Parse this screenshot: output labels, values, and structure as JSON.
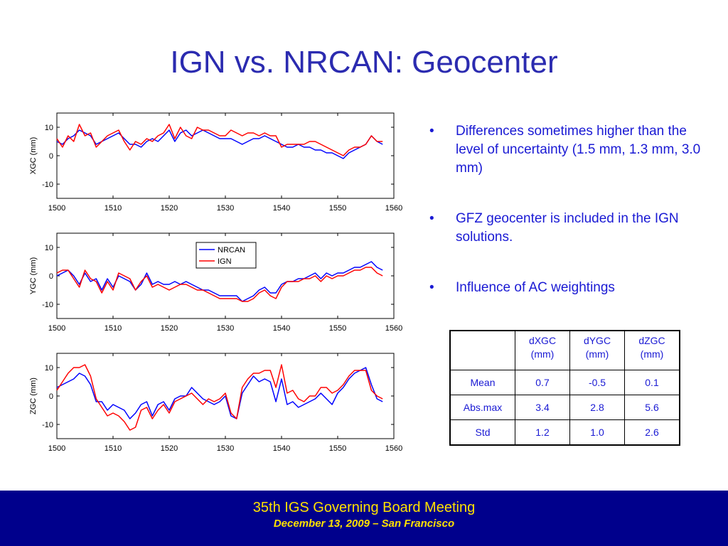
{
  "slide": {
    "title": "IGN vs. NRCAN: Geocenter"
  },
  "colors": {
    "title": "#2b2bb0",
    "bullet_text": "#1a1ad4",
    "nrcan": "#0000ff",
    "ign": "#ff0000",
    "footer_bg": "#00008c",
    "footer_text": "#ffe100"
  },
  "chart_data": [
    {
      "type": "line",
      "ylabel": "XGC (mm)",
      "xlim": [
        1500,
        1560
      ],
      "ylim": [
        -15,
        15
      ],
      "xticks": [
        1500,
        1510,
        1520,
        1530,
        1540,
        1550,
        1560
      ],
      "yticks": [
        -10,
        0,
        10
      ],
      "series": [
        {
          "name": "NRCAN",
          "color": "#0000ff",
          "x": [
            1500,
            1501,
            1502,
            1503,
            1504,
            1505,
            1506,
            1507,
            1508,
            1509,
            1510,
            1511,
            1512,
            1513,
            1514,
            1515,
            1516,
            1517,
            1518,
            1519,
            1520,
            1521,
            1522,
            1523,
            1524,
            1525,
            1526,
            1527,
            1528,
            1529,
            1530,
            1531,
            1532,
            1533,
            1534,
            1535,
            1536,
            1537,
            1538,
            1539,
            1540,
            1541,
            1542,
            1543,
            1544,
            1545,
            1546,
            1547,
            1548,
            1549,
            1550,
            1551,
            1552,
            1553,
            1554,
            1555,
            1556,
            1557,
            1558
          ],
          "y": [
            5,
            4,
            6,
            7,
            9,
            8,
            7,
            4,
            5,
            6,
            7,
            8,
            6,
            4,
            4,
            3,
            5,
            6,
            5,
            7,
            9,
            5,
            8,
            9,
            7,
            8,
            9,
            8,
            7,
            6,
            6,
            6,
            5,
            4,
            5,
            6,
            6,
            7,
            6,
            5,
            4,
            3,
            3,
            4,
            3,
            3,
            2,
            2,
            1,
            1,
            0,
            -1,
            1,
            2,
            3,
            4,
            7,
            5,
            4
          ]
        },
        {
          "name": "IGN",
          "color": "#ff0000",
          "x": [
            1500,
            1501,
            1502,
            1503,
            1504,
            1505,
            1506,
            1507,
            1508,
            1509,
            1510,
            1511,
            1512,
            1513,
            1514,
            1515,
            1516,
            1517,
            1518,
            1519,
            1520,
            1521,
            1522,
            1523,
            1524,
            1525,
            1526,
            1527,
            1528,
            1529,
            1530,
            1531,
            1532,
            1533,
            1534,
            1535,
            1536,
            1537,
            1538,
            1539,
            1540,
            1541,
            1542,
            1543,
            1544,
            1545,
            1546,
            1547,
            1548,
            1549,
            1550,
            1551,
            1552,
            1553,
            1554,
            1555,
            1556,
            1557,
            1558
          ],
          "y": [
            6,
            3,
            7,
            5,
            11,
            7,
            8,
            3,
            5,
            7,
            8,
            9,
            5,
            2,
            5,
            4,
            6,
            5,
            7,
            8,
            11,
            6,
            10,
            7,
            6,
            10,
            9,
            9,
            8,
            7,
            7,
            9,
            8,
            7,
            8,
            8,
            7,
            8,
            7,
            7,
            3,
            4,
            4,
            4,
            4,
            5,
            5,
            4,
            3,
            2,
            1,
            0,
            2,
            3,
            3,
            4,
            7,
            5,
            5
          ]
        }
      ]
    },
    {
      "type": "line",
      "ylabel": "YGC (mm)",
      "xlim": [
        1500,
        1560
      ],
      "ylim": [
        -15,
        15
      ],
      "xticks": [
        1500,
        1510,
        1520,
        1530,
        1540,
        1550,
        1560
      ],
      "yticks": [
        -10,
        0,
        10
      ],
      "legend": {
        "position": "top-center",
        "entries": [
          "NRCAN",
          "IGN"
        ]
      },
      "series": [
        {
          "name": "NRCAN",
          "color": "#0000ff",
          "x": [
            1500,
            1501,
            1502,
            1503,
            1504,
            1505,
            1506,
            1507,
            1508,
            1509,
            1510,
            1511,
            1512,
            1513,
            1514,
            1515,
            1516,
            1517,
            1518,
            1519,
            1520,
            1521,
            1522,
            1523,
            1524,
            1525,
            1526,
            1527,
            1528,
            1529,
            1530,
            1531,
            1532,
            1533,
            1534,
            1535,
            1536,
            1537,
            1538,
            1539,
            1540,
            1541,
            1542,
            1543,
            1544,
            1545,
            1546,
            1547,
            1548,
            1549,
            1550,
            1551,
            1552,
            1553,
            1554,
            1555,
            1556,
            1557,
            1558
          ],
          "y": [
            0,
            1,
            2,
            0,
            -3,
            1,
            -2,
            -1,
            -5,
            -1,
            -4,
            0,
            -1,
            -2,
            -5,
            -3,
            1,
            -3,
            -2,
            -3,
            -3,
            -2,
            -3,
            -2,
            -3,
            -4,
            -5,
            -5,
            -6,
            -7,
            -7,
            -7,
            -7,
            -9,
            -8,
            -7,
            -5,
            -4,
            -6,
            -6,
            -3,
            -2,
            -2,
            -1,
            -1,
            0,
            1,
            -1,
            1,
            0,
            1,
            1,
            2,
            3,
            3,
            4,
            5,
            3,
            2
          ]
        },
        {
          "name": "IGN",
          "color": "#ff0000",
          "x": [
            1500,
            1501,
            1502,
            1503,
            1504,
            1505,
            1506,
            1507,
            1508,
            1509,
            1510,
            1511,
            1512,
            1513,
            1514,
            1515,
            1516,
            1517,
            1518,
            1519,
            1520,
            1521,
            1522,
            1523,
            1524,
            1525,
            1526,
            1527,
            1528,
            1529,
            1530,
            1531,
            1532,
            1533,
            1534,
            1535,
            1536,
            1537,
            1538,
            1539,
            1540,
            1541,
            1542,
            1543,
            1544,
            1545,
            1546,
            1547,
            1548,
            1549,
            1550,
            1551,
            1552,
            1553,
            1554,
            1555,
            1556,
            1557,
            1558
          ],
          "y": [
            1,
            2,
            2,
            -1,
            -4,
            2,
            -1,
            -2,
            -6,
            -2,
            -5,
            1,
            0,
            -1,
            -5,
            -2,
            0,
            -4,
            -3,
            -4,
            -5,
            -4,
            -3,
            -3,
            -4,
            -5,
            -5,
            -6,
            -7,
            -8,
            -8,
            -8,
            -8,
            -9,
            -9,
            -8,
            -6,
            -5,
            -7,
            -8,
            -4,
            -2,
            -2,
            -2,
            -1,
            -1,
            0,
            -2,
            0,
            -1,
            0,
            0,
            1,
            2,
            2,
            3,
            3,
            1,
            0
          ]
        }
      ]
    },
    {
      "type": "line",
      "ylabel": "ZGC (mm)",
      "xlim": [
        1500,
        1560
      ],
      "ylim": [
        -15,
        15
      ],
      "xticks": [
        1500,
        1510,
        1520,
        1530,
        1540,
        1550,
        1560
      ],
      "yticks": [
        -10,
        0,
        10
      ],
      "series": [
        {
          "name": "NRCAN",
          "color": "#0000ff",
          "x": [
            1500,
            1501,
            1502,
            1503,
            1504,
            1505,
            1506,
            1507,
            1508,
            1509,
            1510,
            1511,
            1512,
            1513,
            1514,
            1515,
            1516,
            1517,
            1518,
            1519,
            1520,
            1521,
            1522,
            1523,
            1524,
            1525,
            1526,
            1527,
            1528,
            1529,
            1530,
            1531,
            1532,
            1533,
            1534,
            1535,
            1536,
            1537,
            1538,
            1539,
            1540,
            1541,
            1542,
            1543,
            1544,
            1545,
            1546,
            1547,
            1548,
            1549,
            1550,
            1551,
            1552,
            1553,
            1554,
            1555,
            1556,
            1557,
            1558
          ],
          "y": [
            3,
            4,
            5,
            6,
            8,
            7,
            4,
            -2,
            -2,
            -5,
            -3,
            -4,
            -5,
            -8,
            -6,
            -3,
            -2,
            -7,
            -3,
            -2,
            -5,
            -1,
            0,
            0,
            3,
            1,
            -1,
            -2,
            -3,
            -2,
            0,
            -7,
            -8,
            1,
            4,
            7,
            5,
            6,
            5,
            -2,
            6,
            -3,
            -2,
            -4,
            -3,
            -2,
            -1,
            1,
            -1,
            -3,
            1,
            3,
            6,
            8,
            9,
            10,
            4,
            -1,
            -2
          ]
        },
        {
          "name": "IGN",
          "color": "#ff0000",
          "x": [
            1500,
            1501,
            1502,
            1503,
            1504,
            1505,
            1506,
            1507,
            1508,
            1509,
            1510,
            1511,
            1512,
            1513,
            1514,
            1515,
            1516,
            1517,
            1518,
            1519,
            1520,
            1521,
            1522,
            1523,
            1524,
            1525,
            1526,
            1527,
            1528,
            1529,
            1530,
            1531,
            1532,
            1533,
            1534,
            1535,
            1536,
            1537,
            1538,
            1539,
            1540,
            1541,
            1542,
            1543,
            1544,
            1545,
            1546,
            1547,
            1548,
            1549,
            1550,
            1551,
            1552,
            1553,
            1554,
            1555,
            1556,
            1557,
            1558
          ],
          "y": [
            2,
            5,
            8,
            10,
            10,
            11,
            7,
            -1,
            -4,
            -7,
            -6,
            -7,
            -9,
            -12,
            -11,
            -5,
            -4,
            -8,
            -5,
            -3,
            -6,
            -2,
            -1,
            0,
            1,
            -1,
            -3,
            -1,
            -2,
            -1,
            1,
            -6,
            -8,
            3,
            6,
            8,
            8,
            9,
            9,
            3,
            11,
            1,
            2,
            -1,
            -2,
            0,
            0,
            3,
            3,
            1,
            2,
            4,
            7,
            9,
            9,
            9,
            2,
            0,
            -1
          ]
        }
      ]
    }
  ],
  "bullets": {
    "marker": "•",
    "items": [
      "Differences sometimes higher than the level of uncertainty (1.5 mm, 1.3 mm, 3.0 mm)",
      "GFZ geocenter is included in the IGN solutions.",
      "Influence of AC weightings"
    ]
  },
  "table": {
    "headers": [
      "",
      "dXGC (mm)",
      "dYGC (mm)",
      "dZGC (mm)"
    ],
    "header_lines": [
      [
        "",
        ""
      ],
      [
        "dXGC",
        "(mm)"
      ],
      [
        "dYGC",
        "(mm)"
      ],
      [
        "dZGC",
        "(mm)"
      ]
    ],
    "rows": [
      [
        "Mean",
        "0.7",
        "-0.5",
        "0.1"
      ],
      [
        "Abs.max",
        "3.4",
        "2.8",
        "5.6"
      ],
      [
        "Std",
        "1.2",
        "1.0",
        "2.6"
      ]
    ]
  },
  "footer": {
    "title": "35th IGS Governing Board Meeting",
    "subtitle": "December 13, 2009 – San Francisco"
  }
}
